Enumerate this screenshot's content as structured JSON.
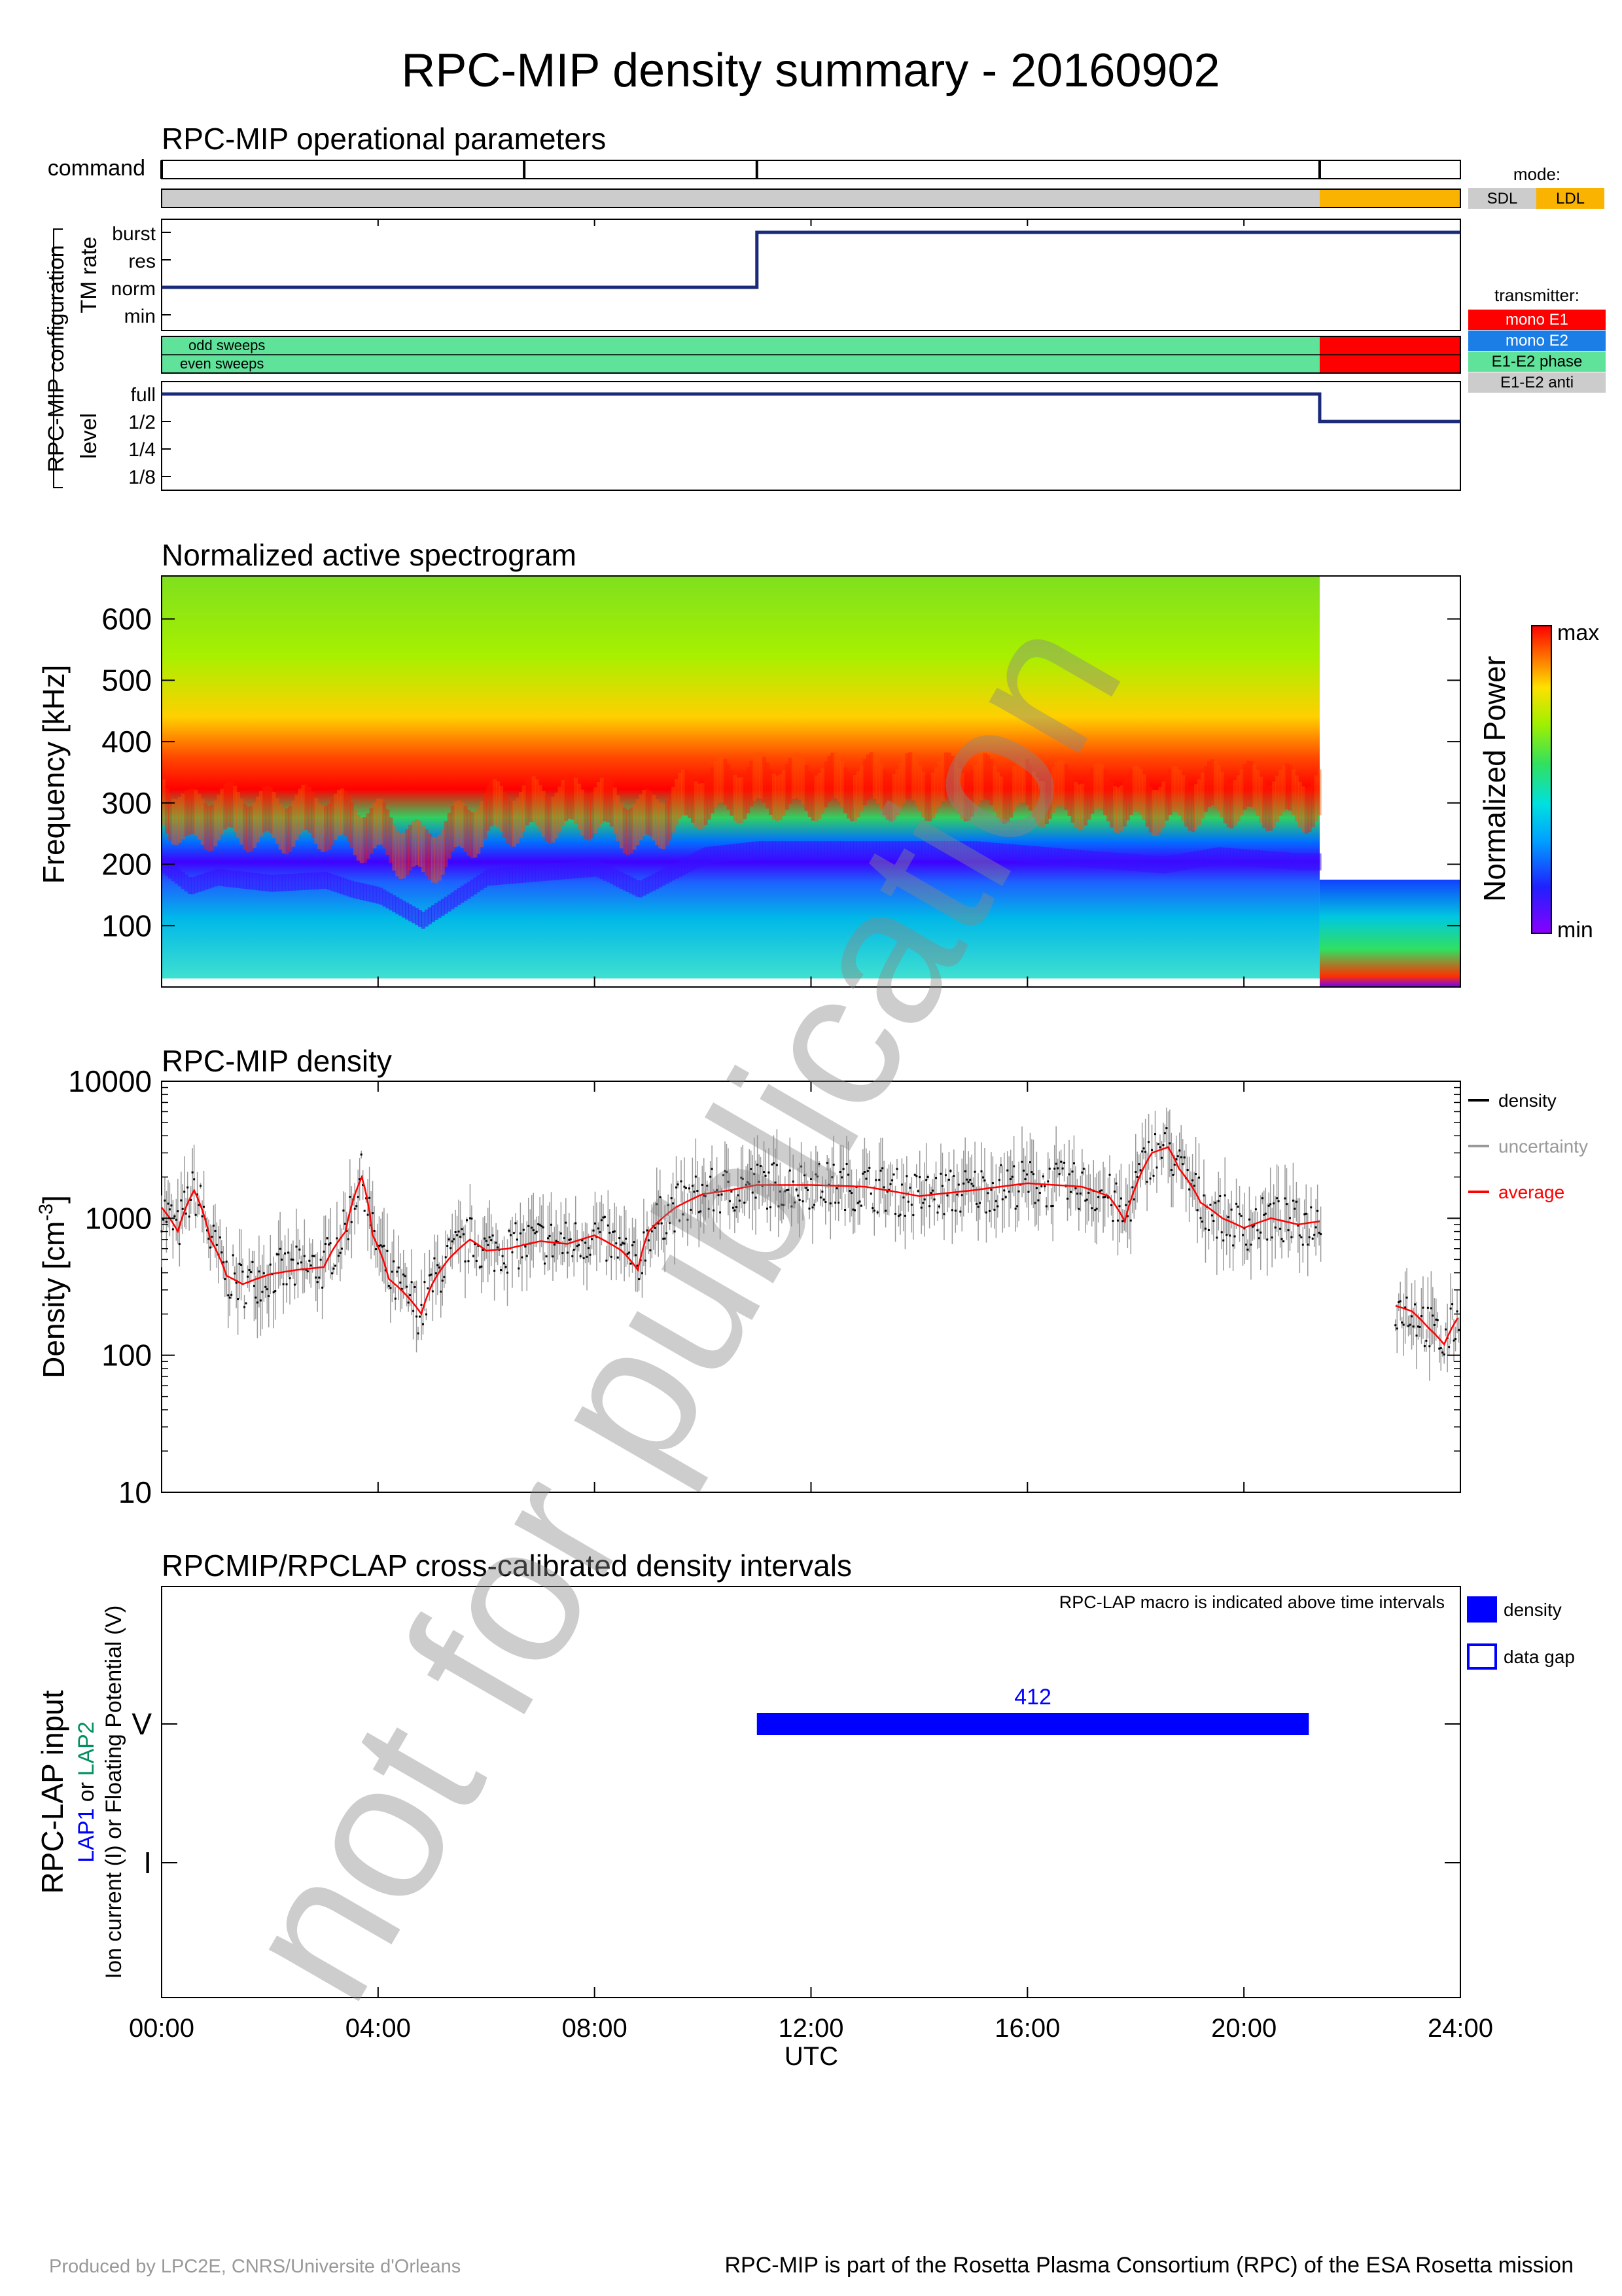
{
  "title": "RPC-MIP density summary - 20160902",
  "footer": {
    "left": "Produced by LPC2E, CNRS/Universite d'Orleans",
    "right": "RPC-MIP is part of the Rosetta Plasma Consortium (RPC) of the ESA Rosetta mission"
  },
  "watermark": "not for publication",
  "time_axis": {
    "ticks": [
      "00:00",
      "04:00",
      "08:00",
      "12:00",
      "16:00",
      "20:00",
      "24:00"
    ],
    "label": "UTC",
    "range_hours": [
      0,
      24
    ]
  },
  "ops": {
    "title": "RPC-MIP operational parameters",
    "command_label": "command",
    "command_hours": [
      6.7,
      11.0,
      21.4
    ],
    "config_label": "RPC-MIP configuration",
    "tm_rate_label": "TM rate",
    "tm_levels": [
      "burst",
      "res",
      "norm",
      "min"
    ],
    "tm_steps": [
      {
        "start": 0,
        "end": 11.0,
        "level": "norm"
      },
      {
        "start": 11.0,
        "end": 24,
        "level": "burst"
      }
    ],
    "mode_title": "mode:",
    "modes": [
      {
        "name": "SDL",
        "color": "#cccccc"
      },
      {
        "name": "LDL",
        "color": "#f9b300"
      }
    ],
    "mode_segments": [
      {
        "start": 0,
        "end": 21.4,
        "mode": "SDL"
      },
      {
        "start": 21.4,
        "end": 24,
        "mode": "LDL"
      }
    ],
    "sweep_labels": [
      "odd sweeps",
      "even sweeps"
    ],
    "transmitter_title": "transmitter:",
    "transmitters": [
      {
        "name": "mono E1",
        "color": "#ff0000"
      },
      {
        "name": "mono E2",
        "color": "#1a7ee6"
      },
      {
        "name": "E1-E2 phase",
        "color": "#5fe39a"
      },
      {
        "name": "E1-E2 anti",
        "color": "#cccccc"
      }
    ],
    "transmitter_segments": [
      {
        "start": 0,
        "end": 21.4,
        "mode": "E1-E2 phase"
      },
      {
        "start": 21.4,
        "end": 24,
        "mode": "mono E1"
      }
    ],
    "level_label": "level",
    "levels": [
      "full",
      "1/2",
      "1/4",
      "1/8"
    ],
    "level_steps": [
      {
        "start": 0,
        "end": 21.4,
        "level": "full"
      },
      {
        "start": 21.4,
        "end": 24,
        "level": "1/2"
      }
    ]
  },
  "spectrogram": {
    "title": "Normalized active spectrogram",
    "ylabel": "Frequency [kHz]",
    "yticks": [
      100,
      200,
      300,
      400,
      500,
      600
    ],
    "ylim": [
      0,
      670
    ],
    "colorbar_label": "Normalized Power",
    "colorbar_max": "max",
    "colorbar_min": "min",
    "top_hz_lds": 175,
    "switch_hour": 21.4
  },
  "density": {
    "title": "RPC-MIP density",
    "ylabel": "Density [cm",
    "ylabel_sup": "-3",
    "ylabel_end": "]",
    "yticks": [
      "10000",
      "1000",
      "100",
      "10"
    ],
    "legend": [
      {
        "name": "density",
        "color": "#000000"
      },
      {
        "name": "uncertainty",
        "color": "#999999"
      },
      {
        "name": "average",
        "color": "#ff0000"
      }
    ]
  },
  "lap": {
    "title": "RPCMIP/RPCLAP cross-calibrated density intervals",
    "note": "RPC-LAP macro is indicated above time intervals",
    "ylabel_main": "RPC-LAP input",
    "ylabel_lap1": "LAP1",
    "ylabel_or": " or ",
    "ylabel_lap2": "LAP2",
    "ylabel_sub": "Ion current (I) or Floating Potential (V)",
    "yticks": [
      "V",
      "I"
    ],
    "legend": [
      {
        "name": "density",
        "kind": "filled"
      },
      {
        "name": "data gap",
        "kind": "open"
      }
    ],
    "intervals": [
      {
        "start": 11.0,
        "end": 21.2,
        "row": "V",
        "macro": "412"
      }
    ]
  },
  "chart_data": [
    {
      "type": "line",
      "title": "RPC-MIP operational parameters",
      "series": [
        {
          "name": "TM rate",
          "x": [
            0,
            11.0,
            11.0,
            24
          ],
          "values": [
            "norm",
            "norm",
            "burst",
            "burst"
          ]
        },
        {
          "name": "level",
          "x": [
            0,
            21.4,
            21.4,
            24
          ],
          "values": [
            "full",
            "full",
            "1/2",
            "1/2"
          ]
        }
      ],
      "xlabel": "UTC",
      "xlim": [
        0,
        24
      ]
    },
    {
      "type": "heatmap",
      "title": "Normalized active spectrogram",
      "xlabel": "UTC",
      "ylabel": "Frequency [kHz]",
      "xlim": [
        0,
        24
      ],
      "ylim": [
        0,
        670
      ],
      "plasma_line_khz": {
        "x": [
          0,
          0.5,
          1,
          2,
          3,
          3.5,
          4,
          4.8,
          6,
          8,
          8.8,
          10,
          11,
          13,
          15,
          17,
          18.5,
          19.5,
          21
        ],
        "values": [
          200,
          165,
          180,
          170,
          175,
          160,
          150,
          110,
          180,
          195,
          160,
          215,
          225,
          225,
          225,
          210,
          200,
          215,
          205
        ]
      }
    },
    {
      "type": "line",
      "title": "RPC-MIP density",
      "ylabel": "Density [cm-3]",
      "xlabel": "UTC",
      "ylog": true,
      "ylim": [
        10,
        10000
      ],
      "xlim": [
        0,
        24
      ],
      "series": [
        {
          "name": "average",
          "x": [
            0,
            0.3,
            0.6,
            0.9,
            1.2,
            1.5,
            2.0,
            2.5,
            3.0,
            3.4,
            3.7,
            3.9,
            4.2,
            4.5,
            4.8,
            5.0,
            5.3,
            5.7,
            6.0,
            6.4,
            7.0,
            7.5,
            8.0,
            8.5,
            8.8,
            9.0,
            9.5,
            10.0,
            10.5,
            11.0,
            12.0,
            13.0,
            14.0,
            15.0,
            16.0,
            17.0,
            17.5,
            17.8,
            18.0,
            18.3,
            18.6,
            18.8,
            19.2,
            19.6,
            20.0,
            20.5,
            21.0,
            21.4,
            22.8,
            23.1,
            23.4,
            23.7,
            24.0
          ],
          "values": [
            1200,
            800,
            1600,
            700,
            380,
            330,
            390,
            420,
            440,
            800,
            2000,
            750,
            360,
            280,
            200,
            330,
            500,
            700,
            580,
            600,
            680,
            650,
            750,
            580,
            420,
            800,
            1200,
            1500,
            1600,
            1750,
            1750,
            1700,
            1450,
            1600,
            1800,
            1700,
            1450,
            950,
            1700,
            3000,
            3300,
            2300,
            1300,
            1000,
            850,
            1000,
            900,
            950,
            230,
            210,
            160,
            120,
            200
          ]
        }
      ]
    },
    {
      "type": "bar",
      "title": "RPCMIP/RPCLAP cross-calibrated density intervals",
      "xlabel": "UTC",
      "xlim": [
        0,
        24
      ],
      "series": [
        {
          "name": "density",
          "x_start": [
            11.0
          ],
          "x_end": [
            21.2
          ],
          "row": [
            "V"
          ],
          "labels": [
            "412"
          ]
        }
      ]
    }
  ]
}
